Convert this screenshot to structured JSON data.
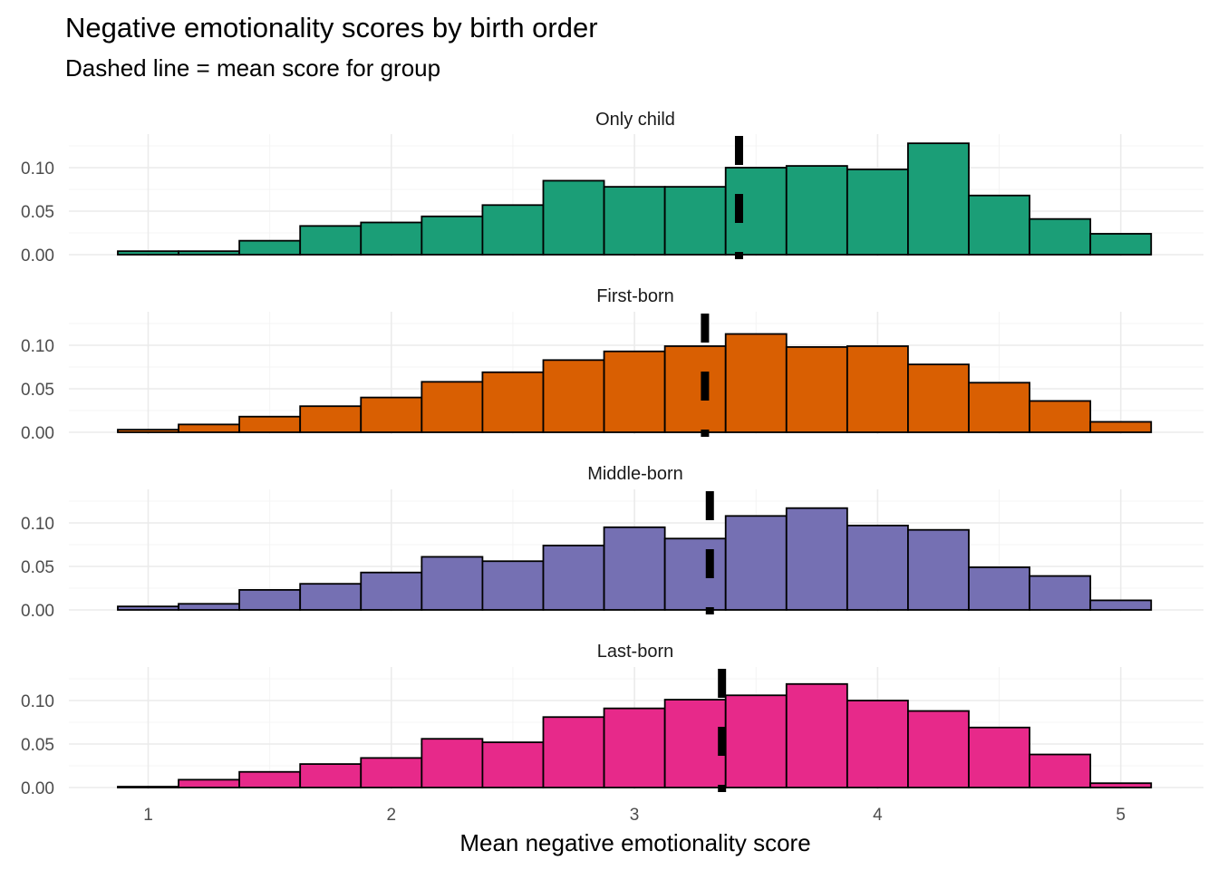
{
  "chart_data": {
    "type": "bar",
    "title": "Negative emotionality scores by birth order",
    "subtitle": "Dashed line = mean score for group",
    "xlabel": "Mean negative emotionality score",
    "ylabel": "",
    "x_ticks": [
      1,
      2,
      3,
      4,
      5
    ],
    "y_ticks": [
      "0.00",
      "0.05",
      "0.10"
    ],
    "xlim": [
      0.7,
      5.35
    ],
    "ylim": [
      0,
      0.13
    ],
    "bin_width": 0.25,
    "bin_starts": [
      0.875,
      1.125,
      1.375,
      1.625,
      1.875,
      2.125,
      2.375,
      2.625,
      2.875,
      3.125,
      3.375,
      3.625,
      3.875,
      4.125,
      4.375,
      4.625,
      4.875
    ],
    "facets": [
      {
        "name": "Only child",
        "color": "#1b9e77",
        "mean": 3.43,
        "values": [
          0.004,
          0.004,
          0.016,
          0.033,
          0.037,
          0.044,
          0.057,
          0.085,
          0.078,
          0.078,
          0.1,
          0.102,
          0.098,
          0.128,
          0.068,
          0.041,
          0.024
        ]
      },
      {
        "name": "First-born",
        "color": "#d95f02",
        "mean": 3.29,
        "values": [
          0.003,
          0.009,
          0.018,
          0.03,
          0.04,
          0.058,
          0.069,
          0.083,
          0.093,
          0.099,
          0.113,
          0.098,
          0.099,
          0.078,
          0.057,
          0.036,
          0.012
        ]
      },
      {
        "name": "Middle-born",
        "color": "#7570b3",
        "mean": 3.31,
        "values": [
          0.004,
          0.007,
          0.023,
          0.03,
          0.043,
          0.061,
          0.056,
          0.074,
          0.095,
          0.082,
          0.108,
          0.117,
          0.097,
          0.092,
          0.049,
          0.039,
          0.011
        ]
      },
      {
        "name": "Last-born",
        "color": "#e7298a",
        "mean": 3.36,
        "values": [
          0.001,
          0.009,
          0.018,
          0.027,
          0.034,
          0.056,
          0.052,
          0.081,
          0.091,
          0.101,
          0.106,
          0.119,
          0.1,
          0.088,
          0.069,
          0.038,
          0.005
        ]
      }
    ]
  }
}
